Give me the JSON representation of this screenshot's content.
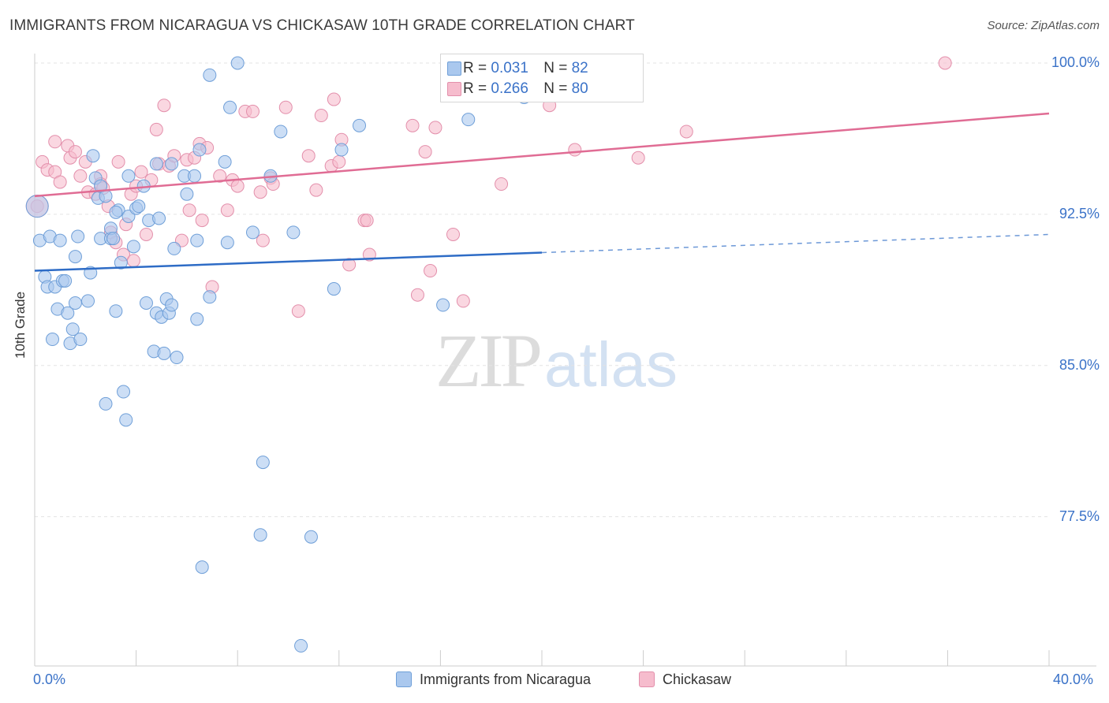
{
  "title": "IMMIGRANTS FROM NICARAGUA VS CHICKASAW 10TH GRADE CORRELATION CHART",
  "source": "Source: ZipAtlas.com",
  "watermark": {
    "zip": "ZIP",
    "atlas": "atlas"
  },
  "legend_top": [
    {
      "r_label": "R =",
      "r_value": "0.031",
      "n_label": "N =",
      "n_value": "82",
      "color": "#aac8ee"
    },
    {
      "r_label": "R =",
      "r_value": "0.266",
      "n_label": "N =",
      "n_value": "80",
      "color": "#f6bccd"
    }
  ],
  "colors": {
    "blue_fill": "#aac8ee",
    "blue_stroke": "#6f9fd8",
    "blue_line": "#2e6cc6",
    "pink_fill": "#f6bccd",
    "pink_stroke": "#e38fab",
    "pink_line": "#e06c94",
    "tick_text": "#3a72c8",
    "grid": "#e3e3e3"
  },
  "chart_data": {
    "type": "scatter",
    "title": "IMMIGRANTS FROM NICARAGUA VS CHICKASAW 10TH GRADE CORRELATION CHART",
    "xlabel": "",
    "ylabel": "10th Grade",
    "xlim": [
      0,
      40
    ],
    "ylim": [
      71,
      101
    ],
    "x_tick_labels": [
      "0.0%",
      "40.0%"
    ],
    "y_ticks": [
      100.0,
      92.5,
      85.0,
      77.5
    ],
    "y_tick_labels": [
      "100.0%",
      "92.5%",
      "85.0%",
      "77.5%"
    ],
    "grid": true,
    "legend_position": "bottom",
    "series": [
      {
        "name": "Immigrants from Nicaragua",
        "r": 0.031,
        "n": 82,
        "trend": {
          "x0": 0,
          "y0": 89.7,
          "x1": 20,
          "y1": 90.6,
          "dashed_to_x": 40,
          "dashed_to_y": 91.5
        },
        "points": [
          [
            0.2,
            91.2
          ],
          [
            0.4,
            89.4
          ],
          [
            0.5,
            88.9
          ],
          [
            0.6,
            91.4
          ],
          [
            0.7,
            86.3
          ],
          [
            0.8,
            88.9
          ],
          [
            0.9,
            87.8
          ],
          [
            1.0,
            91.2
          ],
          [
            1.1,
            89.2
          ],
          [
            1.2,
            89.2
          ],
          [
            1.3,
            87.6
          ],
          [
            1.4,
            86.1
          ],
          [
            1.5,
            86.8
          ],
          [
            1.6,
            88.1
          ],
          [
            1.6,
            90.4
          ],
          [
            1.7,
            91.4
          ],
          [
            1.8,
            86.3
          ],
          [
            2.1,
            88.2
          ],
          [
            2.2,
            89.6
          ],
          [
            2.3,
            95.4
          ],
          [
            2.4,
            94.3
          ],
          [
            2.5,
            93.3
          ],
          [
            2.6,
            93.9
          ],
          [
            2.6,
            91.3
          ],
          [
            2.8,
            93.4
          ],
          [
            2.8,
            83.1
          ],
          [
            3.0,
            91.3
          ],
          [
            3.0,
            91.8
          ],
          [
            3.1,
            91.3
          ],
          [
            3.2,
            87.7
          ],
          [
            3.3,
            92.7
          ],
          [
            3.4,
            90.1
          ],
          [
            3.5,
            83.7
          ],
          [
            3.6,
            82.3
          ],
          [
            3.7,
            92.4
          ],
          [
            3.7,
            94.4
          ],
          [
            3.9,
            90.9
          ],
          [
            4.0,
            92.8
          ],
          [
            4.1,
            92.9
          ],
          [
            4.3,
            93.9
          ],
          [
            4.4,
            88.1
          ],
          [
            4.5,
            92.2
          ],
          [
            4.7,
            85.7
          ],
          [
            4.8,
            87.6
          ],
          [
            4.9,
            92.3
          ],
          [
            5.0,
            87.4
          ],
          [
            5.1,
            85.6
          ],
          [
            5.2,
            88.3
          ],
          [
            5.3,
            87.6
          ],
          [
            5.4,
            88.0
          ],
          [
            5.4,
            95.0
          ],
          [
            5.5,
            90.8
          ],
          [
            5.6,
            85.4
          ],
          [
            5.9,
            94.4
          ],
          [
            6.0,
            93.5
          ],
          [
            6.3,
            94.4
          ],
          [
            6.4,
            87.3
          ],
          [
            6.4,
            91.2
          ],
          [
            6.5,
            95.7
          ],
          [
            6.6,
            75.0
          ],
          [
            6.9,
            88.4
          ],
          [
            6.9,
            99.4
          ],
          [
            7.5,
            95.1
          ],
          [
            7.6,
            91.1
          ],
          [
            7.7,
            97.8
          ],
          [
            8.0,
            100.0
          ],
          [
            8.6,
            91.6
          ],
          [
            8.9,
            76.6
          ],
          [
            9.0,
            80.2
          ],
          [
            9.3,
            94.4
          ],
          [
            9.7,
            96.6
          ],
          [
            10.2,
            91.6
          ],
          [
            10.5,
            71.1
          ],
          [
            10.9,
            76.5
          ],
          [
            11.8,
            88.8
          ],
          [
            12.1,
            95.7
          ],
          [
            12.8,
            96.9
          ],
          [
            16.1,
            88.0
          ],
          [
            17.1,
            97.2
          ],
          [
            19.3,
            98.3
          ],
          [
            4.8,
            95.0
          ],
          [
            3.2,
            92.6
          ]
        ]
      },
      {
        "name": "Chickasaw",
        "r": 0.266,
        "n": 80,
        "trend": {
          "x0": 0,
          "y0": 93.4,
          "x1": 40,
          "y1": 97.5
        },
        "points": [
          [
            0.1,
            92.9
          ],
          [
            0.3,
            95.1
          ],
          [
            0.5,
            94.7
          ],
          [
            0.8,
            94.6
          ],
          [
            0.8,
            96.1
          ],
          [
            1.0,
            94.1
          ],
          [
            1.3,
            95.9
          ],
          [
            1.4,
            95.3
          ],
          [
            1.6,
            95.6
          ],
          [
            1.8,
            94.4
          ],
          [
            2.0,
            95.1
          ],
          [
            2.1,
            93.6
          ],
          [
            2.4,
            93.5
          ],
          [
            2.6,
            94.4
          ],
          [
            2.6,
            94.0
          ],
          [
            2.9,
            92.9
          ],
          [
            3.0,
            91.6
          ],
          [
            3.2,
            91.1
          ],
          [
            3.3,
            95.1
          ],
          [
            3.5,
            90.5
          ],
          [
            3.6,
            92.0
          ],
          [
            3.8,
            93.5
          ],
          [
            3.9,
            90.2
          ],
          [
            4.0,
            93.9
          ],
          [
            4.2,
            94.6
          ],
          [
            4.4,
            91.5
          ],
          [
            4.6,
            94.2
          ],
          [
            4.8,
            96.7
          ],
          [
            4.9,
            95.0
          ],
          [
            5.1,
            97.9
          ],
          [
            5.3,
            94.9
          ],
          [
            5.5,
            95.4
          ],
          [
            5.8,
            91.2
          ],
          [
            6.0,
            95.2
          ],
          [
            6.1,
            92.7
          ],
          [
            6.3,
            95.3
          ],
          [
            6.5,
            96.0
          ],
          [
            6.6,
            92.2
          ],
          [
            6.8,
            95.8
          ],
          [
            7.0,
            88.9
          ],
          [
            7.3,
            94.4
          ],
          [
            7.6,
            92.7
          ],
          [
            7.8,
            94.2
          ],
          [
            8.0,
            93.9
          ],
          [
            8.3,
            97.6
          ],
          [
            8.6,
            97.6
          ],
          [
            8.9,
            93.6
          ],
          [
            9.0,
            91.2
          ],
          [
            9.3,
            94.3
          ],
          [
            9.4,
            94.0
          ],
          [
            9.9,
            97.8
          ],
          [
            10.4,
            87.7
          ],
          [
            10.8,
            95.4
          ],
          [
            11.1,
            93.7
          ],
          [
            11.3,
            97.4
          ],
          [
            11.7,
            94.9
          ],
          [
            11.8,
            98.2
          ],
          [
            12.0,
            95.1
          ],
          [
            12.1,
            96.2
          ],
          [
            12.4,
            90.0
          ],
          [
            13.0,
            92.2
          ],
          [
            13.1,
            92.2
          ],
          [
            13.2,
            90.5
          ],
          [
            14.9,
            96.9
          ],
          [
            15.1,
            88.5
          ],
          [
            15.4,
            95.6
          ],
          [
            15.6,
            89.7
          ],
          [
            15.8,
            96.8
          ],
          [
            16.5,
            91.5
          ],
          [
            16.9,
            88.2
          ],
          [
            18.4,
            94.0
          ],
          [
            18.6,
            100.0
          ],
          [
            20.3,
            97.9
          ],
          [
            21.1,
            100.0
          ],
          [
            21.3,
            95.7
          ],
          [
            23.8,
            95.3
          ],
          [
            25.7,
            96.6
          ],
          [
            35.9,
            100.0
          ],
          [
            22.8,
            100.0
          ],
          [
            2.7,
            93.8
          ]
        ]
      }
    ]
  },
  "legend_bottom": [
    {
      "label": "Immigrants from Nicaragua"
    },
    {
      "label": "Chickasaw"
    }
  ]
}
